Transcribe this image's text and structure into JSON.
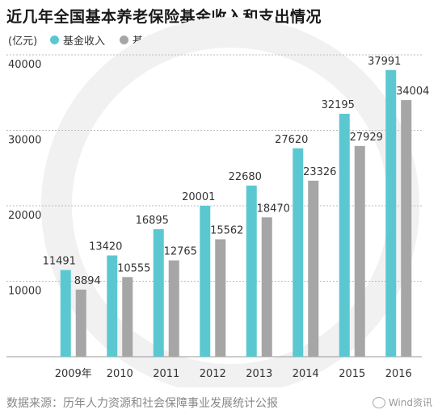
{
  "header": {
    "title": "近几年全国基本养老保险基金收入和支出情况",
    "unit": "(亿元)"
  },
  "legend": [
    {
      "label": "基金收入",
      "color": "#5bc8d1"
    },
    {
      "label": "基金支出",
      "color": "#a6a6a6"
    }
  ],
  "chart_data": {
    "type": "bar",
    "categories": [
      "2009年",
      "2010",
      "2011",
      "2012",
      "2013",
      "2014",
      "2015",
      "2016"
    ],
    "series": [
      {
        "name": "基金收入",
        "color": "#5bc8d1",
        "values": [
          11491,
          13420,
          16895,
          20001,
          22680,
          27620,
          32195,
          37991
        ]
      },
      {
        "name": "基金支出",
        "color": "#a6a6a6",
        "values": [
          8894,
          10555,
          12765,
          15562,
          18470,
          23326,
          27929,
          34004
        ]
      }
    ],
    "yticks": [
      "10000",
      "20000",
      "30000",
      "40000"
    ],
    "ylim": [
      0,
      40000
    ],
    "grid": true,
    "legend_position": "top-left"
  },
  "footer": {
    "source": "数据来源：历年人力资源和社会保障事业发展统计公报",
    "watermark": "Wind资讯"
  }
}
